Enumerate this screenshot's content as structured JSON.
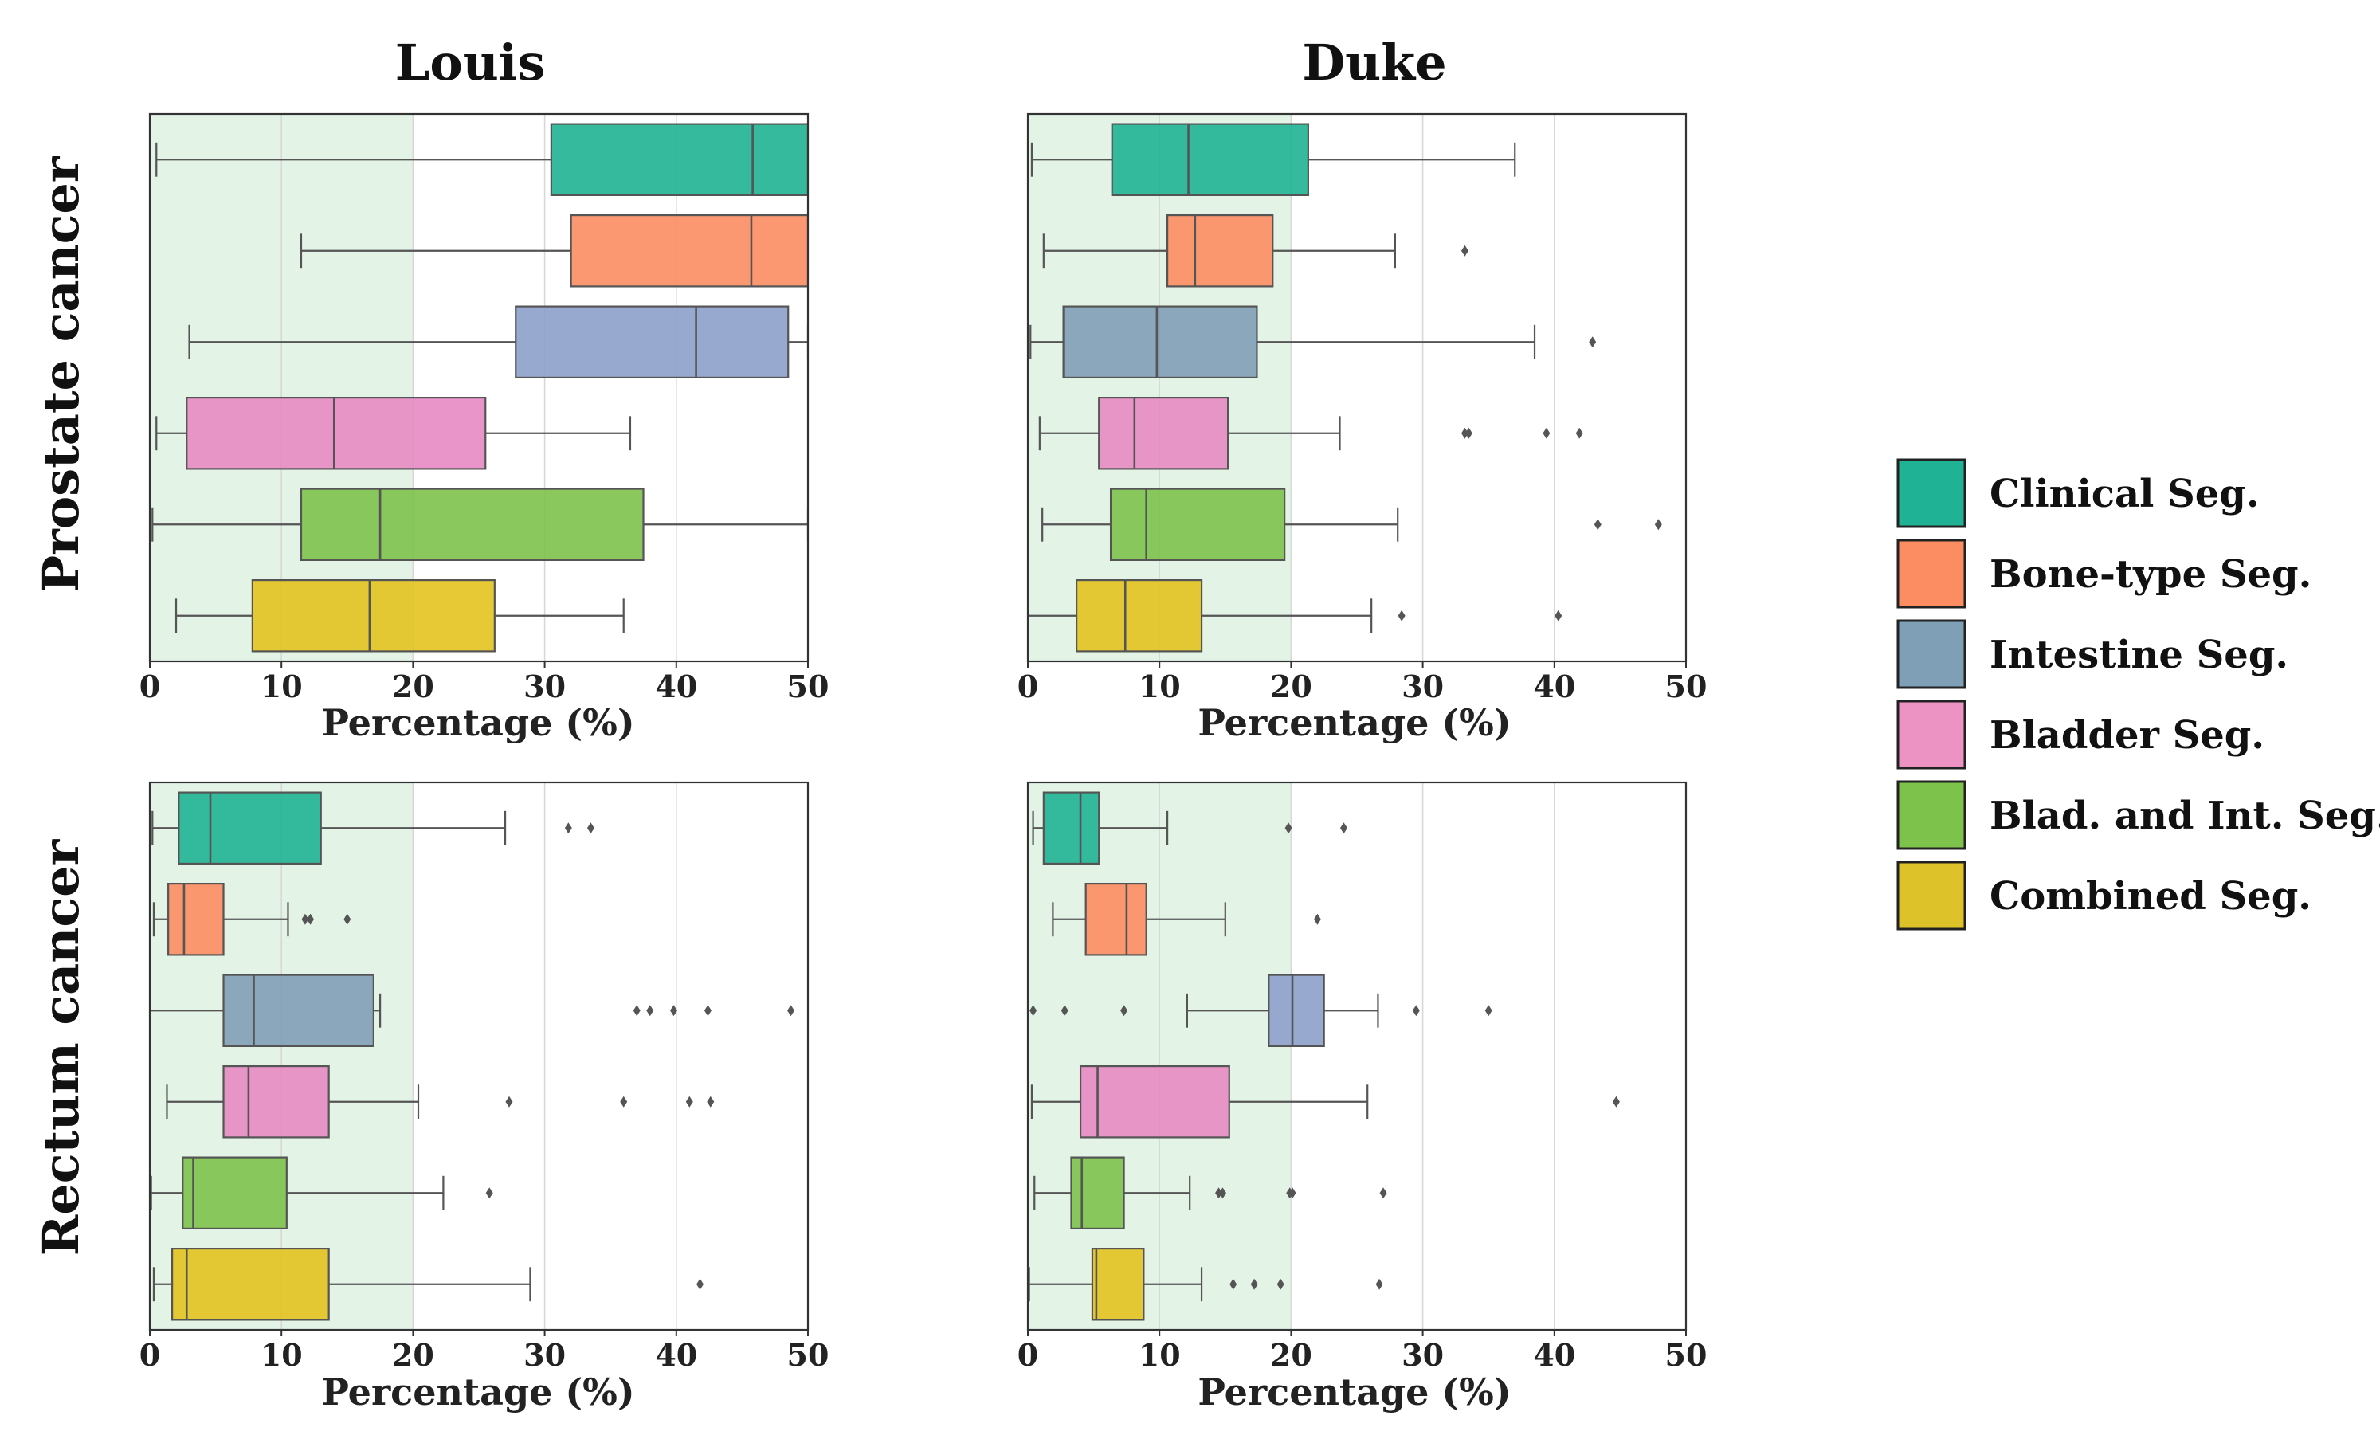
{
  "chart_data": {
    "type": "boxplot",
    "col_titles": [
      "Louis",
      "Duke"
    ],
    "row_titles": [
      "Prostate cancer",
      "Rectum cancer"
    ],
    "xlabel": "Percentage (%)",
    "xlim": [
      0,
      50
    ],
    "xticks": [
      "0",
      "10",
      "20",
      "30",
      "40",
      "50"
    ],
    "highlight_range": [
      0,
      20
    ],
    "colors": {
      "Clinical Seg.": "#1fb294",
      "Bone-type Seg.": "#fc8d62",
      "Intestine Seg.": "#8da0cb",
      "Bladder Seg.": "#e78ac3",
      "Blad. and Int. Seg.": "#7dc24b",
      "Combined Seg.": "#e3c31f"
    },
    "highlight_color": "#e3f3e6",
    "legend": {
      "position": "right",
      "entries": [
        {
          "label": "Clinical Seg.",
          "color": "#1fb294"
        },
        {
          "label": "Bone-type Seg.",
          "color": "#fc8d62"
        },
        {
          "label": "Intestine Seg.",
          "color": "#7f9fb7"
        },
        {
          "label": "Bladder Seg.",
          "color": "#ec93c4"
        },
        {
          "label": "Blad. and Int. Seg.",
          "color": "#7dc24b"
        },
        {
          "label": "Combined Seg.",
          "color": "#ddc22a"
        }
      ]
    },
    "panels": [
      {
        "row": 0,
        "col": 0,
        "series": [
          {
            "name": "Clinical Seg.",
            "color": "#1fb294",
            "whislo": 0.5,
            "q1": 30.5,
            "median": 45.8,
            "q3": 55,
            "whishi": 55,
            "fliers": []
          },
          {
            "name": "Bone-type Seg.",
            "color": "#fc8d62",
            "whislo": 11.5,
            "q1": 32,
            "median": 45.7,
            "q3": 55,
            "whishi": 55,
            "fliers": []
          },
          {
            "name": "Intestine Seg.",
            "color": "#8da0cb",
            "whislo": 3,
            "q1": 27.8,
            "median": 41.5,
            "q3": 48.5,
            "whishi": 52,
            "fliers": []
          },
          {
            "name": "Bladder Seg.",
            "color": "#e78ac3",
            "whislo": 0.5,
            "q1": 2.8,
            "median": 14,
            "q3": 25.5,
            "whishi": 36.5,
            "fliers": []
          },
          {
            "name": "Blad. and Int. Seg.",
            "color": "#7dc24b",
            "whislo": 0.2,
            "q1": 11.5,
            "median": 17.5,
            "q3": 37.5,
            "whishi": 52,
            "fliers": []
          },
          {
            "name": "Combined Seg.",
            "color": "#e3c31f",
            "whislo": 2,
            "q1": 7.8,
            "median": 16.7,
            "q3": 26.2,
            "whishi": 36,
            "fliers": []
          }
        ]
      },
      {
        "row": 0,
        "col": 1,
        "series": [
          {
            "name": "Clinical Seg.",
            "color": "#1fb294",
            "whislo": 0.3,
            "q1": 6.4,
            "median": 12.2,
            "q3": 21.3,
            "whishi": 37,
            "fliers": []
          },
          {
            "name": "Bone-type Seg.",
            "color": "#fc8d62",
            "whislo": 1.2,
            "q1": 10.6,
            "median": 12.7,
            "q3": 18.6,
            "whishi": 27.9,
            "fliers": [
              33.2
            ]
          },
          {
            "name": "Intestine Seg.",
            "color": "#7f9fb7",
            "whislo": 0.2,
            "q1": 2.7,
            "median": 9.8,
            "q3": 17.4,
            "whishi": 38.5,
            "fliers": [
              42.9
            ]
          },
          {
            "name": "Bladder Seg.",
            "color": "#e78ac3",
            "whislo": 0.9,
            "q1": 5.4,
            "median": 8.1,
            "q3": 15.2,
            "whishi": 23.7,
            "fliers": [
              33.2,
              33.5,
              39.4,
              41.9
            ]
          },
          {
            "name": "Blad. and Int. Seg.",
            "color": "#7dc24b",
            "whislo": 1.1,
            "q1": 6.3,
            "median": 9,
            "q3": 19.5,
            "whishi": 28.1,
            "fliers": [
              43.3,
              47.9
            ]
          },
          {
            "name": "Combined Seg.",
            "color": "#e3c31f",
            "whislo": 0,
            "q1": 3.7,
            "median": 7.4,
            "q3": 13.2,
            "whishi": 26.1,
            "fliers": [
              28.4,
              40.3
            ]
          }
        ]
      },
      {
        "row": 1,
        "col": 0,
        "series": [
          {
            "name": "Clinical Seg.",
            "color": "#1fb294",
            "whislo": 0.2,
            "q1": 2.2,
            "median": 4.6,
            "q3": 13,
            "whishi": 27,
            "fliers": [
              31.8,
              33.5
            ]
          },
          {
            "name": "Bone-type Seg.",
            "color": "#fc8d62",
            "whislo": 0.3,
            "q1": 1.4,
            "median": 2.6,
            "q3": 5.6,
            "whishi": 10.5,
            "fliers": [
              11.8,
              12.2,
              15
            ]
          },
          {
            "name": "Intestine Seg.",
            "color": "#7f9fb7",
            "whislo": 0,
            "q1": 5.6,
            "median": 7.9,
            "q3": 17,
            "whishi": 17.5,
            "fliers": [
              37,
              38,
              39.8,
              42.4,
              48.7
            ]
          },
          {
            "name": "Bladder Seg.",
            "color": "#e78ac3",
            "whislo": 1.3,
            "q1": 5.6,
            "median": 7.5,
            "q3": 13.6,
            "whishi": 20.4,
            "fliers": [
              27.3,
              36,
              41,
              42.6
            ]
          },
          {
            "name": "Blad. and Int. Seg.",
            "color": "#7dc24b",
            "whislo": 0.1,
            "q1": 2.5,
            "median": 3.3,
            "q3": 10.4,
            "whishi": 22.3,
            "fliers": [
              25.8
            ]
          },
          {
            "name": "Combined Seg.",
            "color": "#e3c31f",
            "whislo": 0.3,
            "q1": 1.7,
            "median": 2.8,
            "q3": 13.6,
            "whishi": 28.9,
            "fliers": [
              41.8
            ]
          }
        ]
      },
      {
        "row": 1,
        "col": 1,
        "series": [
          {
            "name": "Clinical Seg.",
            "color": "#1fb294",
            "whislo": 0.4,
            "q1": 1.2,
            "median": 4,
            "q3": 5.4,
            "whishi": 10.6,
            "fliers": [
              19.8,
              24
            ]
          },
          {
            "name": "Bone-type Seg.",
            "color": "#fc8d62",
            "whislo": 1.9,
            "q1": 4.4,
            "median": 7.5,
            "q3": 9,
            "whishi": 15,
            "fliers": [
              22
            ]
          },
          {
            "name": "Intestine Seg.",
            "color": "#8da0cb",
            "whislo": 12.1,
            "q1": 18.3,
            "median": 20.1,
            "q3": 22.5,
            "whishi": 26.6,
            "fliers": [
              0.4,
              2.8,
              7.3,
              29.5,
              35
            ]
          },
          {
            "name": "Bladder Seg.",
            "color": "#e78ac3",
            "whislo": 0.3,
            "q1": 4,
            "median": 5.3,
            "q3": 15.3,
            "whishi": 25.8,
            "fliers": [
              44.7
            ]
          },
          {
            "name": "Blad. and Int. Seg.",
            "color": "#7dc24b",
            "whislo": 0.5,
            "q1": 3.3,
            "median": 4.1,
            "q3": 7.3,
            "whishi": 12.3,
            "fliers": [
              14.5,
              14.8,
              19.9,
              20.1,
              27
            ]
          },
          {
            "name": "Combined Seg.",
            "color": "#e3c31f",
            "whislo": 0.1,
            "q1": 4.9,
            "median": 5.2,
            "q3": 8.8,
            "whishi": 13.2,
            "fliers": [
              15.6,
              17.2,
              19.2,
              26.7
            ]
          }
        ]
      }
    ]
  }
}
